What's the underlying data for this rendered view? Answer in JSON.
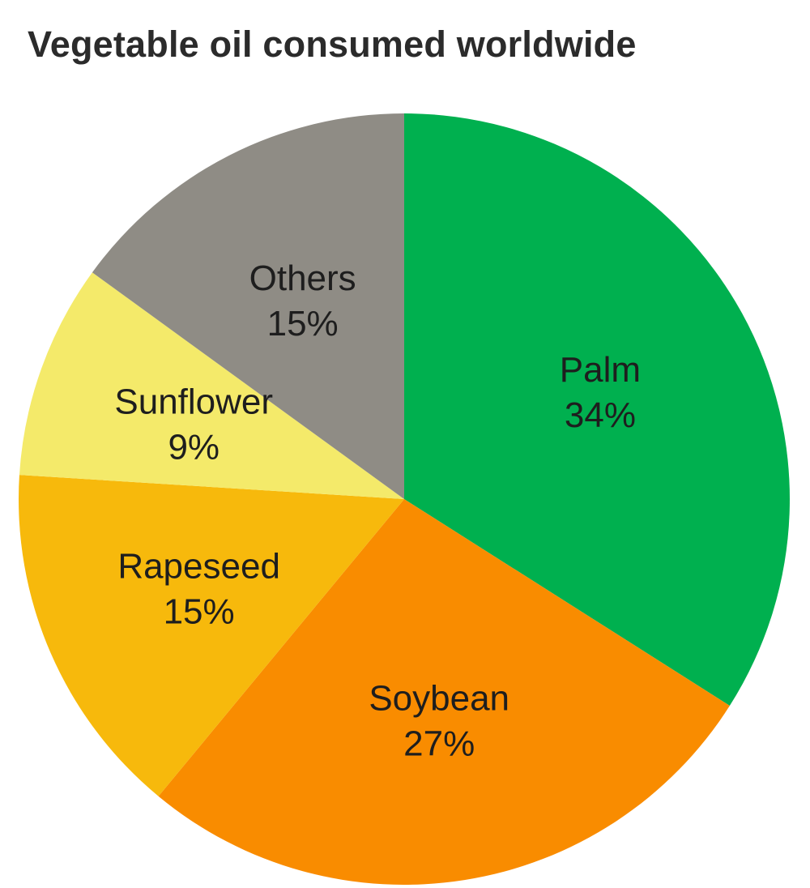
{
  "chart_data": {
    "type": "pie",
    "title": "Vegetable oil consumed worldwide",
    "start_angle_deg": 0,
    "direction": "clockwise",
    "slices": [
      {
        "label": "Palm",
        "value": 34,
        "value_label": "34%",
        "color": "#00b04f"
      },
      {
        "label": "Soybean",
        "value": 27,
        "value_label": "27%",
        "color": "#f98c00"
      },
      {
        "label": "Rapeseed",
        "value": 15,
        "value_label": "15%",
        "color": "#f7b90c"
      },
      {
        "label": "Sunflower",
        "value": 9,
        "value_label": "9%",
        "color": "#f4ea6a"
      },
      {
        "label": "Others",
        "value": 15,
        "value_label": "15%",
        "color": "#8f8c85"
      }
    ]
  }
}
